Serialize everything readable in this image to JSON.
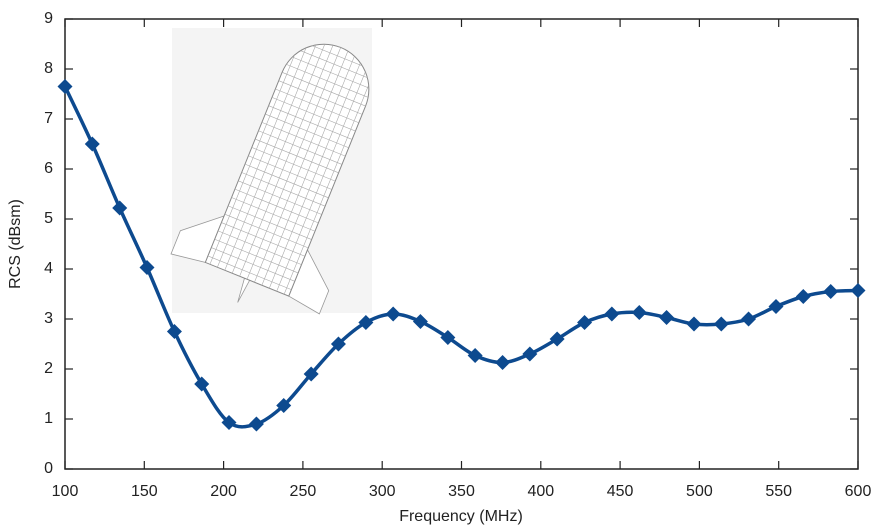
{
  "chart_data": {
    "type": "line",
    "x_label": "Frequency (MHz)",
    "y_label": "RCS (dBsm)",
    "x": [
      100,
      117.2,
      134.5,
      151.7,
      169.0,
      186.2,
      203.4,
      220.7,
      237.9,
      255.2,
      272.4,
      289.7,
      306.9,
      324.1,
      341.4,
      358.6,
      375.9,
      393.1,
      410.3,
      427.6,
      444.8,
      462.1,
      479.3,
      496.6,
      513.8,
      531.0,
      548.3,
      565.5,
      582.8,
      600
    ],
    "series": [
      {
        "color": "#0d4a8f",
        "values": [
          7.65,
          6.5,
          5.22,
          4.03,
          2.75,
          1.7,
          0.93,
          0.9,
          1.27,
          1.9,
          2.5,
          2.93,
          3.1,
          2.95,
          2.63,
          2.27,
          2.13,
          2.3,
          2.6,
          2.93,
          3.1,
          3.13,
          3.03,
          2.9,
          2.9,
          3.0,
          3.25,
          3.45,
          3.55,
          3.57
        ]
      }
    ],
    "xlim": [
      100,
      600
    ],
    "ylim": [
      0,
      9
    ],
    "xticks": [
      100,
      150,
      200,
      250,
      300,
      350,
      400,
      450,
      500,
      550,
      600
    ],
    "yticks": [
      0,
      1,
      2,
      3,
      4,
      5,
      6,
      7,
      8,
      9
    ]
  }
}
